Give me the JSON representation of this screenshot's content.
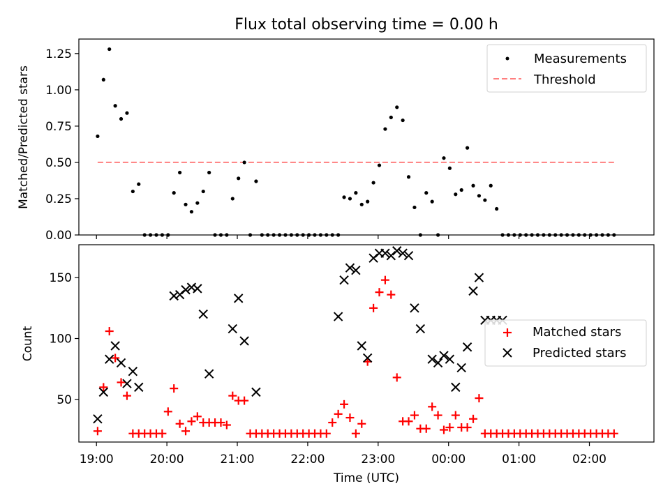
{
  "chart_data": [
    {
      "type": "scatter",
      "title": "Flux total observing time = 0.00 h",
      "ylabel": "Matched/Predicted stars",
      "xlabel": "",
      "xlim": [
        "18:45",
        "02:55"
      ],
      "ylim": [
        0,
        1.35
      ],
      "yticks": [
        "0.00",
        "0.25",
        "0.50",
        "0.75",
        "1.00",
        "1.25"
      ],
      "legend_position": "upper right",
      "series": [
        {
          "name": "Measurements",
          "marker": "dot",
          "color": "#000000",
          "x": [
            "19:01",
            "19:06",
            "19:11",
            "19:16",
            "19:21",
            "19:26",
            "19:31",
            "19:36",
            "19:41",
            "19:46",
            "19:51",
            "19:56",
            "20:01",
            "20:06",
            "20:11",
            "20:16",
            "20:21",
            "20:26",
            "20:31",
            "20:36",
            "20:41",
            "20:46",
            "20:51",
            "20:56",
            "21:01",
            "21:06",
            "21:11",
            "21:16",
            "21:21",
            "21:26",
            "21:31",
            "21:36",
            "21:41",
            "21:46",
            "21:51",
            "21:56",
            "22:01",
            "22:06",
            "22:11",
            "22:16",
            "22:21",
            "22:26",
            "22:31",
            "22:36",
            "22:41",
            "22:46",
            "22:51",
            "22:56",
            "23:01",
            "23:06",
            "23:11",
            "23:16",
            "23:21",
            "23:26",
            "23:31",
            "23:36",
            "23:41",
            "23:46",
            "23:51",
            "23:56",
            "00:01",
            "00:06",
            "00:11",
            "00:16",
            "00:21",
            "00:26",
            "00:31",
            "00:36",
            "00:41",
            "00:46",
            "00:51",
            "00:56",
            "01:01",
            "01:06",
            "01:11",
            "01:16",
            "01:21",
            "01:26",
            "01:31",
            "01:36",
            "01:41",
            "01:46",
            "01:51",
            "01:56",
            "02:01",
            "02:06",
            "02:11",
            "02:16",
            "02:21"
          ],
          "y": [
            0.68,
            1.07,
            1.28,
            0.89,
            0.8,
            0.84,
            0.3,
            0.35,
            0,
            0,
            0,
            0,
            0,
            0.29,
            0.43,
            0.21,
            0.16,
            0.22,
            0.3,
            0.43,
            0,
            0,
            0,
            0.25,
            0.39,
            0.5,
            0,
            0.37,
            0,
            0,
            0,
            0,
            0,
            0,
            0,
            0,
            0,
            0,
            0,
            0,
            0,
            0,
            0.26,
            0.25,
            0.29,
            0.21,
            0.23,
            0.36,
            0.48,
            0.73,
            0.81,
            0.88,
            0.79,
            0.4,
            0.19,
            0,
            0.29,
            0.23,
            0,
            0.53,
            0.46,
            0.28,
            0.31,
            0.6,
            0.34,
            0.27,
            0.24,
            0.34,
            0.18,
            0,
            0,
            0,
            0,
            0,
            0,
            0,
            0,
            0,
            0,
            0,
            0,
            0,
            0,
            0,
            0,
            0,
            0,
            0,
            0
          ]
        },
        {
          "name": "Threshold",
          "style": "dashed",
          "color": "#ff7f7f",
          "x": [
            "19:01",
            "02:21"
          ],
          "y": [
            0.5,
            0.5
          ]
        }
      ]
    },
    {
      "type": "scatter",
      "title": "",
      "ylabel": "Count",
      "xlabel": "Time (UTC)",
      "xlim": [
        "18:45",
        "02:55"
      ],
      "ylim": [
        15,
        177
      ],
      "yticks": [
        "50",
        "100",
        "150"
      ],
      "xticks": [
        "19:00",
        "20:00",
        "21:00",
        "22:00",
        "23:00",
        "00:00",
        "01:00",
        "02:00"
      ],
      "legend_position": "center right",
      "series": [
        {
          "name": "Matched stars",
          "marker": "plus",
          "color": "#ff0000",
          "x": [
            "19:01",
            "19:06",
            "19:11",
            "19:16",
            "19:21",
            "19:26",
            "19:31",
            "19:36",
            "19:41",
            "19:46",
            "19:51",
            "19:56",
            "20:01",
            "20:06",
            "20:11",
            "20:16",
            "20:21",
            "20:26",
            "20:31",
            "20:36",
            "20:41",
            "20:46",
            "20:51",
            "20:56",
            "21:01",
            "21:06",
            "21:11",
            "21:16",
            "21:21",
            "21:26",
            "21:31",
            "21:36",
            "21:41",
            "21:46",
            "21:51",
            "21:56",
            "22:01",
            "22:06",
            "22:11",
            "22:16",
            "22:21",
            "22:26",
            "22:31",
            "22:36",
            "22:41",
            "22:46",
            "22:51",
            "22:56",
            "23:01",
            "23:06",
            "23:11",
            "23:16",
            "23:21",
            "23:26",
            "23:31",
            "23:36",
            "23:41",
            "23:46",
            "23:51",
            "23:56",
            "00:01",
            "00:06",
            "00:11",
            "00:16",
            "00:21",
            "00:26",
            "00:31",
            "00:36",
            "00:41",
            "00:46",
            "00:51",
            "00:56",
            "01:01",
            "01:06",
            "01:11",
            "01:16",
            "01:21",
            "01:26",
            "01:31",
            "01:36",
            "01:41",
            "01:46",
            "01:51",
            "01:56",
            "02:01",
            "02:06",
            "02:11",
            "02:16",
            "02:21"
          ],
          "y": [
            24,
            60,
            106,
            84,
            64,
            53,
            22,
            22,
            22,
            22,
            22,
            22,
            40,
            59,
            30,
            24,
            32,
            36,
            31,
            31,
            31,
            31,
            29,
            53,
            49,
            49,
            22,
            22,
            22,
            22,
            22,
            22,
            22,
            22,
            22,
            22,
            22,
            22,
            22,
            22,
            31,
            38,
            46,
            35,
            22,
            30,
            81,
            125,
            138,
            148,
            136,
            68,
            32,
            32,
            37,
            26,
            26,
            44,
            37,
            25,
            27,
            37,
            27,
            27,
            34,
            51,
            22,
            22,
            22,
            22,
            22,
            22,
            22,
            22,
            22,
            22,
            22,
            22,
            22,
            22,
            22,
            22,
            22,
            22,
            22,
            22,
            22,
            22,
            22
          ]
        },
        {
          "name": "Predicted stars",
          "marker": "x",
          "color": "#000000",
          "x": [
            "19:01",
            "19:06",
            "19:11",
            "19:16",
            "19:21",
            "19:26",
            "19:31",
            "19:36",
            "20:06",
            "20:11",
            "20:16",
            "20:21",
            "20:26",
            "20:31",
            "20:36",
            "20:56",
            "21:01",
            "21:06",
            "21:16",
            "22:26",
            "22:31",
            "22:36",
            "22:41",
            "22:46",
            "22:51",
            "22:56",
            "23:01",
            "23:06",
            "23:11",
            "23:16",
            "23:21",
            "23:26",
            "23:31",
            "23:36",
            "23:46",
            "23:51",
            "23:56",
            "00:01",
            "00:06",
            "00:11",
            "00:16",
            "00:21",
            "00:26",
            "00:31",
            "00:36",
            "00:41",
            "00:46"
          ],
          "y": [
            34,
            56,
            83,
            94,
            80,
            63,
            73,
            60,
            135,
            136,
            140,
            142,
            141,
            120,
            71,
            108,
            133,
            98,
            56,
            118,
            148,
            158,
            156,
            94,
            84,
            166,
            170,
            170,
            168,
            172,
            170,
            168,
            125,
            108,
            83,
            80,
            86,
            83,
            60,
            76,
            93,
            139,
            150,
            115,
            115,
            115,
            115
          ]
        }
      ]
    }
  ]
}
